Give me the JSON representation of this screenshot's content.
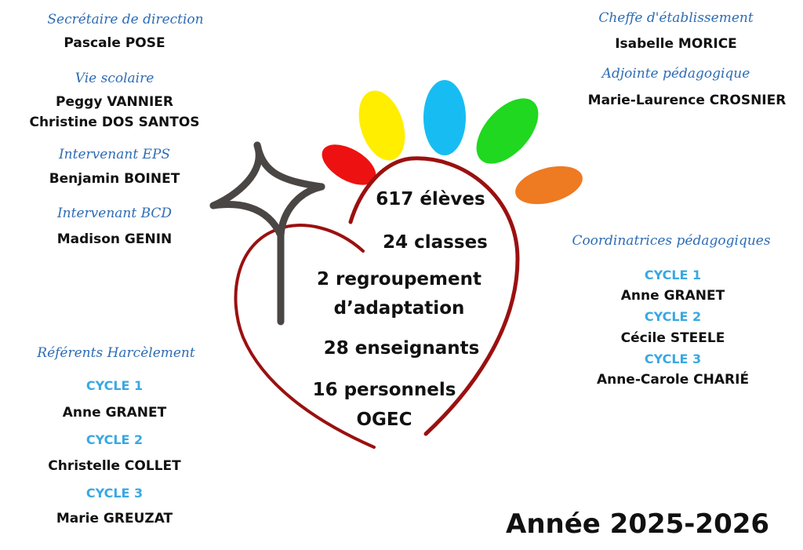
{
  "left": {
    "secretaire": {
      "title": "Secrétaire de direction",
      "name": "Pascale POSE"
    },
    "vie_scolaire": {
      "title": "Vie scolaire",
      "names": [
        "Peggy VANNIER",
        "Christine DOS SANTOS"
      ]
    },
    "eps": {
      "title": "Intervenant EPS",
      "name": "Benjamin BOINET"
    },
    "bcd": {
      "title": "Intervenant BCD",
      "name": "Madison GENIN"
    },
    "harcelement": {
      "title": "Référents Harcèlement",
      "items": [
        {
          "cycle": "CYCLE 1",
          "name": "Anne GRANET"
        },
        {
          "cycle": "CYCLE 2",
          "name": "Christelle COLLET"
        },
        {
          "cycle": "CYCLE  3",
          "name": "Marie GREUZAT"
        }
      ]
    }
  },
  "right": {
    "cheffe": {
      "title": "Cheffe d'établissement",
      "name": "Isabelle MORICE"
    },
    "adjointe": {
      "title": "Adjointe pédagogique",
      "name": "Marie-Laurence CROSNIER"
    },
    "coordinatrices": {
      "title": "Coordinatrices pédagogiques",
      "items": [
        {
          "cycle": "CYCLE 1",
          "name": "Anne GRANET"
        },
        {
          "cycle": "CYCLE 2",
          "name": "Cécile STEELE"
        },
        {
          "cycle": "CYCLE 3",
          "name": "Anne-Carole CHARIÉ"
        }
      ]
    }
  },
  "stats": [
    "617  élèves",
    "24 classes",
    "2 regroupement",
    "d’adaptation",
    "28 enseignants",
    "16 personnels",
    "OGEC"
  ],
  "year": "Année 2025-2026",
  "colors": {
    "heading": "#2d6cb5",
    "cycle": "#3aa8e2",
    "heart": "#9b1010",
    "petals": [
      "#ee1111",
      "#ffee00",
      "#17bdf2",
      "#1fd81f",
      "#ee7a22"
    ]
  }
}
